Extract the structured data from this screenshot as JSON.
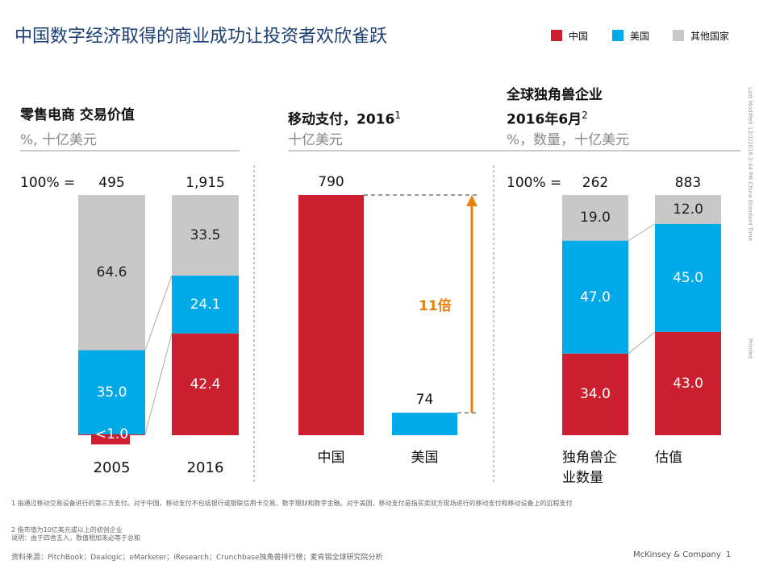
{
  "page": {
    "title": "中国数字经济取得的商业成功让投资者欢欣雀跃"
  },
  "chart_data": [
    {
      "type": "stacked_bar_100",
      "title": "零售电商 交易价值",
      "subtitle": "%, 十亿美元",
      "categories": [
        "2005",
        "2016"
      ],
      "total_prefix": "100% =",
      "totals": [
        495,
        1915
      ],
      "total_labels": [
        "495",
        "1,915"
      ],
      "series": [
        {
          "name": "中国",
          "color": "#cc1f2f",
          "values": [
            0.4,
            42.4
          ],
          "value_labels": [
            "<1.0",
            "42.4"
          ]
        },
        {
          "name": "美国",
          "color": "#00a9e8",
          "values": [
            35.0,
            24.1
          ],
          "value_labels": [
            "35.0",
            "24.1"
          ]
        },
        {
          "name": "其他国家",
          "color": "#c8c8c8",
          "values": [
            64.6,
            33.5
          ],
          "value_labels": [
            "64.6",
            "33.5"
          ]
        }
      ]
    },
    {
      "type": "bar",
      "title": "移动支付，2016",
      "title_sup": "1",
      "subtitle": "十亿美元",
      "categories": [
        "中国",
        "美国"
      ],
      "values": [
        790,
        74
      ],
      "colors": [
        "#cc1f2f",
        "#00a9e8"
      ],
      "annotation": "11倍",
      "annotation_color": "#e8820c"
    },
    {
      "type": "stacked_bar_100",
      "title": "全球独角兽企业",
      "title_line2": "2016年6月",
      "title_sup": "2",
      "subtitle": "%，数量，十亿美元",
      "categories": [
        "独角兽企业数量",
        "估值"
      ],
      "total_prefix": "100% =",
      "totals": [
        262,
        883
      ],
      "series": [
        {
          "name": "中国",
          "color": "#cc1f2f",
          "values": [
            34,
            43
          ],
          "value_labels": [
            "34.0",
            "43.0"
          ]
        },
        {
          "name": "美国",
          "color": "#00a9e8",
          "values": [
            47,
            45
          ],
          "value_labels": [
            "47.0",
            "45.0"
          ]
        },
        {
          "name": "其他国家",
          "color": "#c8c8c8",
          "values": [
            19,
            12
          ],
          "value_labels": [
            "19.0",
            "12.0"
          ]
        }
      ]
    }
  ],
  "footnotes": [
    "1 指通过移动交易设备进行的第三方支付。对于中国，移动支付不包括银行或银联信用卡交易、数字理财和数字金融。对于美国，移动支付是指买卖双方现场进行的移动支付和移动设备上的远程支付",
    "2 指市值为10亿美元或以上的初创企业",
    "说明：由于四舍五入，数值相加未必等于总和"
  ],
  "source": "资料来源：PitchBook；Dealogic；eMarketer；iResearch；Crunchbase独角兽排行榜；麦肯锡全球研究院分析",
  "footer": {
    "company": "McKinsey & Company",
    "page": 1
  },
  "side_notes": [
    "Last Modified 12/1/2016 2:44 PM China Standard Time",
    "Printed"
  ]
}
